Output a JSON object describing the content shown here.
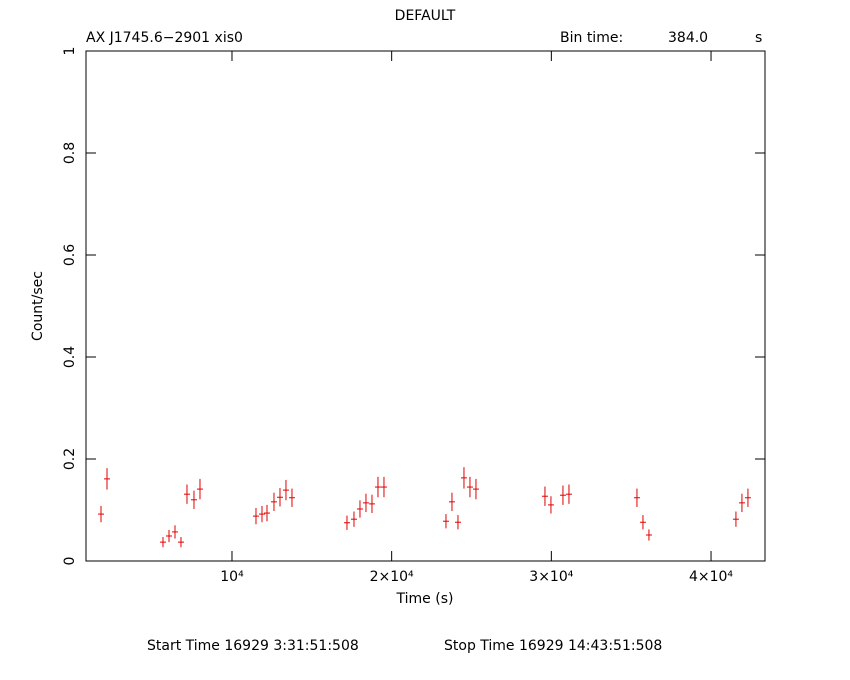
{
  "chart_data": {
    "type": "scatter",
    "title": "DEFAULT",
    "source": "AX J1745.6−2901  xis0",
    "bin_label": "Bin time:",
    "bin_time": "384.0",
    "bin_unit": "s",
    "xlabel": "Time (s)",
    "ylabel": "Count/sec",
    "start_time": "Start Time 16929  3:31:51:508",
    "stop_time": "Stop Time 16929 14:43:51:508",
    "xlim": [
      858,
      43380
    ],
    "ylim": [
      0,
      1
    ],
    "xticks": [
      {
        "value": 10000,
        "label": "10⁴"
      },
      {
        "value": 20000,
        "label": "2×10⁴"
      },
      {
        "value": 30000,
        "label": "3×10⁴"
      },
      {
        "value": 40000,
        "label": "4×10⁴"
      }
    ],
    "yticks": [
      0,
      0.2,
      0.4,
      0.6,
      0.8,
      1
    ],
    "series": [
      {
        "color": "#e00000",
        "x": [
          1797,
          2173,
          5679,
          6055,
          6431,
          6806,
          7182,
          7620,
          7996,
          11503,
          11879,
          12192,
          12630,
          13006,
          13381,
          13757,
          17201,
          17640,
          18015,
          18391,
          18767,
          19143,
          19518,
          23401,
          23776,
          24152,
          24528,
          24903,
          25279,
          29600,
          29975,
          30727,
          31103,
          35361,
          35737,
          36112,
          41560,
          41936,
          42312
        ],
        "y": [
          0.092,
          0.161,
          0.037,
          0.049,
          0.057,
          0.037,
          0.131,
          0.12,
          0.141,
          0.088,
          0.092,
          0.094,
          0.116,
          0.125,
          0.139,
          0.124,
          0.075,
          0.082,
          0.102,
          0.114,
          0.112,
          0.145,
          0.145,
          0.078,
          0.116,
          0.076,
          0.163,
          0.145,
          0.141,
          0.127,
          0.11,
          0.129,
          0.131,
          0.124,
          0.076,
          0.051,
          0.082,
          0.114,
          0.124
        ],
        "yerr": [
          0.016,
          0.021,
          0.01,
          0.012,
          0.013,
          0.01,
          0.019,
          0.018,
          0.02,
          0.016,
          0.016,
          0.016,
          0.018,
          0.018,
          0.02,
          0.018,
          0.014,
          0.015,
          0.017,
          0.018,
          0.018,
          0.02,
          0.02,
          0.014,
          0.018,
          0.014,
          0.021,
          0.02,
          0.02,
          0.019,
          0.017,
          0.019,
          0.019,
          0.018,
          0.014,
          0.011,
          0.015,
          0.018,
          0.018
        ]
      }
    ]
  }
}
